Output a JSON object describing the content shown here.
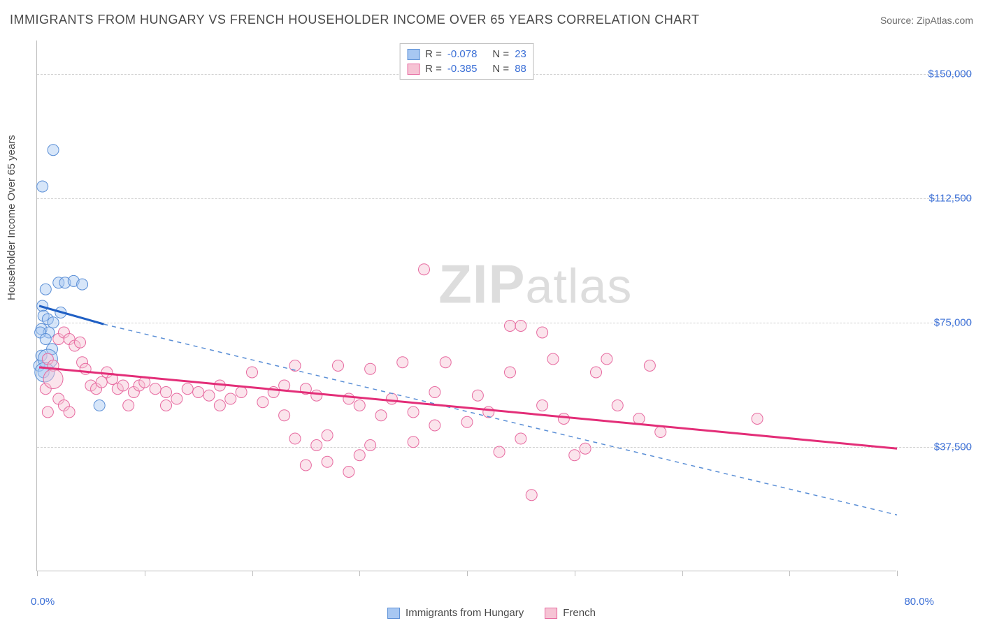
{
  "title": "IMMIGRANTS FROM HUNGARY VS FRENCH HOUSEHOLDER INCOME OVER 65 YEARS CORRELATION CHART",
  "source": "Source: ZipAtlas.com",
  "y_axis_label": "Householder Income Over 65 years",
  "watermark": "ZIPatlas",
  "chart": {
    "type": "scatter",
    "background_color": "#ffffff",
    "grid_color": "#d0d0d0",
    "axis_color": "#bdbdbd",
    "xlim": [
      0,
      80
    ],
    "ylim": [
      0,
      160000
    ],
    "x_ticks": [
      0,
      10,
      20,
      30,
      40,
      50,
      60,
      70,
      80
    ],
    "x_tick_labels": {
      "0": "0.0%",
      "80": "80.0%"
    },
    "y_gridlines": [
      37500,
      75000,
      112500,
      150000
    ],
    "y_tick_labels": [
      "$37,500",
      "$75,000",
      "$112,500",
      "$150,000"
    ],
    "marker_radius": 8,
    "marker_opacity": 0.45,
    "series": [
      {
        "id": "hungary",
        "label": "Immigrants from Hungary",
        "fill": "#a7c7f2",
        "stroke": "#5b8fd6",
        "line_color": "#1f5fc4",
        "line_width": 3,
        "dash_color": "#5b8fd6",
        "R": "-0.078",
        "N": "23",
        "trend_solid": {
          "x1": 0.2,
          "y1": 80000,
          "x2": 6.2,
          "y2": 74500
        },
        "trend_dash": {
          "x1": 6.2,
          "y1": 74500,
          "x2": 80.0,
          "y2": 17000
        },
        "points": [
          [
            0.5,
            116000
          ],
          [
            1.5,
            127000
          ],
          [
            0.8,
            85000
          ],
          [
            0.5,
            80000
          ],
          [
            0.6,
            77000
          ],
          [
            0.4,
            73000
          ],
          [
            1.1,
            72000
          ],
          [
            1.4,
            67000
          ],
          [
            2.0,
            87000
          ],
          [
            2.6,
            87000
          ],
          [
            3.4,
            87500
          ],
          [
            4.2,
            86500
          ],
          [
            0.4,
            65000
          ],
          [
            0.2,
            62000
          ],
          [
            0.6,
            60000
          ],
          [
            0.3,
            72000
          ],
          [
            1.0,
            76000
          ],
          [
            0.8,
            70000
          ],
          [
            1.5,
            75000
          ],
          [
            2.2,
            78000
          ],
          [
            5.8,
            50000
          ],
          [
            1.0,
            64000,
            14
          ],
          [
            0.7,
            60000,
            14
          ]
        ]
      },
      {
        "id": "french",
        "label": "French",
        "fill": "#f6c3d4",
        "stroke": "#e76aa0",
        "line_color": "#e32e78",
        "line_width": 3,
        "R": "-0.385",
        "N": "88",
        "trend_solid": {
          "x1": 0.2,
          "y1": 61500,
          "x2": 80.0,
          "y2": 37000
        },
        "points": [
          [
            1.0,
            64000
          ],
          [
            1.5,
            62000
          ],
          [
            2.0,
            70000
          ],
          [
            2.5,
            72000
          ],
          [
            3.0,
            70000
          ],
          [
            3.5,
            68000
          ],
          [
            4.0,
            69000
          ],
          [
            4.2,
            63000
          ],
          [
            4.5,
            61000
          ],
          [
            5.0,
            56000
          ],
          [
            5.5,
            55000
          ],
          [
            6.0,
            57000
          ],
          [
            6.5,
            60000
          ],
          [
            7.0,
            58000
          ],
          [
            7.5,
            55000
          ],
          [
            8.0,
            56000
          ],
          [
            8.5,
            50000
          ],
          [
            9.0,
            54000
          ],
          [
            9.5,
            56000
          ],
          [
            10,
            57000
          ],
          [
            11,
            55000
          ],
          [
            12,
            54000
          ],
          [
            12,
            50000
          ],
          [
            13,
            52000
          ],
          [
            14,
            55000
          ],
          [
            15,
            54000
          ],
          [
            16,
            53000
          ],
          [
            17,
            56000
          ],
          [
            17,
            50000
          ],
          [
            18,
            52000
          ],
          [
            19,
            54000
          ],
          [
            20,
            60000
          ],
          [
            21,
            51000
          ],
          [
            22,
            54000
          ],
          [
            23,
            56000
          ],
          [
            23,
            47000
          ],
          [
            24,
            62000
          ],
          [
            24,
            40000
          ],
          [
            25,
            32000
          ],
          [
            25,
            55000
          ],
          [
            26,
            53000
          ],
          [
            26,
            38000
          ],
          [
            27,
            41000
          ],
          [
            27,
            33000
          ],
          [
            28,
            62000
          ],
          [
            29,
            30000
          ],
          [
            29,
            52000
          ],
          [
            30,
            50000
          ],
          [
            30,
            35000
          ],
          [
            31,
            61000
          ],
          [
            31,
            38000
          ],
          [
            32,
            47000
          ],
          [
            33,
            52000
          ],
          [
            34,
            63000
          ],
          [
            35,
            39000
          ],
          [
            35,
            48000
          ],
          [
            36,
            91000
          ],
          [
            37,
            54000
          ],
          [
            37,
            44000
          ],
          [
            38,
            63000
          ],
          [
            40,
            45000
          ],
          [
            41,
            53000
          ],
          [
            42,
            48000
          ],
          [
            43,
            36000
          ],
          [
            44,
            74000
          ],
          [
            44,
            60000
          ],
          [
            45,
            74000
          ],
          [
            45,
            40000
          ],
          [
            46,
            23000
          ],
          [
            47,
            72000
          ],
          [
            47,
            50000
          ],
          [
            48,
            64000
          ],
          [
            49,
            46000
          ],
          [
            50,
            35000
          ],
          [
            51,
            37000
          ],
          [
            52,
            60000
          ],
          [
            53,
            64000
          ],
          [
            54,
            50000
          ],
          [
            56,
            46000
          ],
          [
            57,
            62000
          ],
          [
            58,
            42000
          ],
          [
            67,
            46000
          ],
          [
            2.0,
            52000
          ],
          [
            2.5,
            50000
          ],
          [
            1.0,
            48000
          ],
          [
            0.8,
            55000
          ],
          [
            3.0,
            48000
          ],
          [
            1.5,
            58000,
            14
          ]
        ]
      }
    ]
  },
  "legend_top": {
    "rows": [
      {
        "swatch_fill": "#a7c7f2",
        "swatch_stroke": "#5b8fd6",
        "R": "-0.078",
        "N": "23"
      },
      {
        "swatch_fill": "#f6c3d4",
        "swatch_stroke": "#e76aa0",
        "R": "-0.385",
        "N": "88"
      }
    ]
  },
  "legend_bottom": {
    "items": [
      {
        "swatch_fill": "#a7c7f2",
        "swatch_stroke": "#5b8fd6",
        "label": "Immigrants from Hungary"
      },
      {
        "swatch_fill": "#f6c3d4",
        "swatch_stroke": "#e76aa0",
        "label": "French"
      }
    ]
  }
}
